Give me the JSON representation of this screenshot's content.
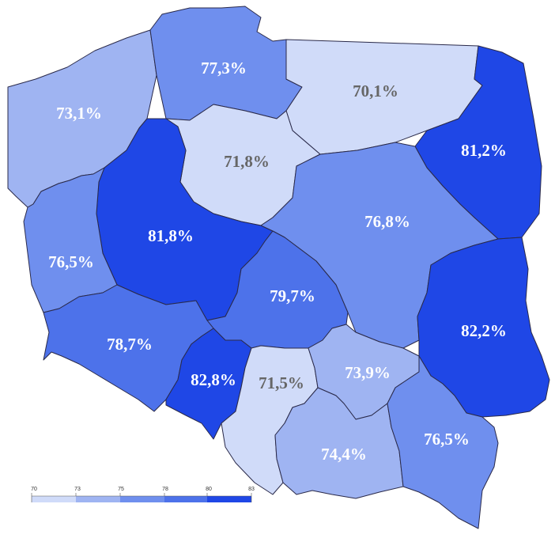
{
  "map": {
    "colors": {
      "c1": "#d0dbf9",
      "c2": "#9fb4f2",
      "c3": "#6f8fee",
      "c4": "#4d72ea",
      "c5": "#1f47e6",
      "label_light": "#ffffff",
      "label_dark": "#666666",
      "border": "#2a2a4a"
    },
    "regions": [
      {
        "id": "pomorskie",
        "value": "77,3%"
      },
      {
        "id": "warminsko-mazurskie",
        "value": "70,1%"
      },
      {
        "id": "zachodniopomorskie",
        "value": "73,1%"
      },
      {
        "id": "kujawsko-pomorskie",
        "value": "71,8%"
      },
      {
        "id": "podlaskie",
        "value": "81,2%"
      },
      {
        "id": "wielkopolskie",
        "value": "81,8%"
      },
      {
        "id": "mazowieckie",
        "value": "76,8%"
      },
      {
        "id": "lubuskie",
        "value": "76,5%"
      },
      {
        "id": "lodzkie",
        "value": "79,7%"
      },
      {
        "id": "lubelskie",
        "value": "82,2%"
      },
      {
        "id": "dolnoslaskie",
        "value": "78,7%"
      },
      {
        "id": "opolskie",
        "value": "82,8%"
      },
      {
        "id": "slaskie",
        "value": "71,5%"
      },
      {
        "id": "swietokrzyskie",
        "value": "73,9%"
      },
      {
        "id": "malopolskie",
        "value": "74,4%"
      },
      {
        "id": "podkarpackie",
        "value": "76,5%"
      }
    ]
  },
  "legend": {
    "ticks": [
      "70",
      "73",
      "75",
      "78",
      "80",
      "83"
    ]
  }
}
